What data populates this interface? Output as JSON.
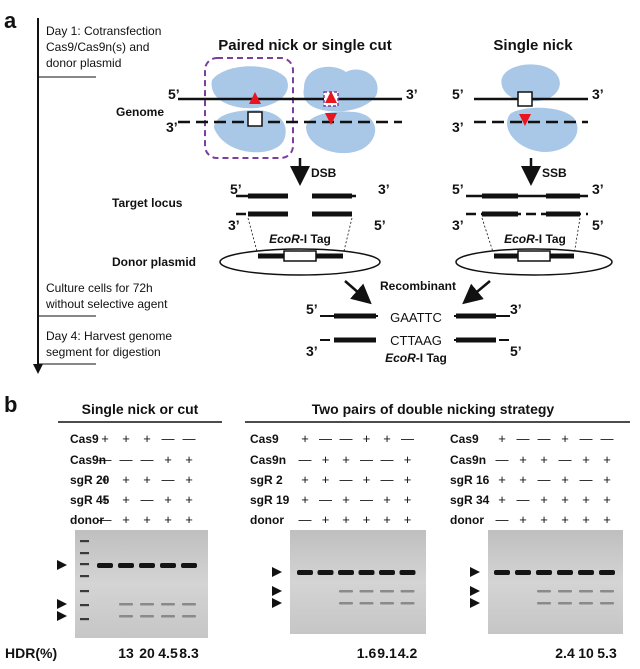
{
  "panel_a": {
    "label": "a",
    "timeline": {
      "day1": [
        "Day 1: Cotransfection",
        "Cas9/Cas9n(s) and",
        "donor plasmid"
      ],
      "culture": [
        "Culture cells for 72h",
        "without selective agent"
      ],
      "day4": [
        "Day 4: Harvest genome",
        "segment for digestion"
      ]
    },
    "title_paired": "Paired nick or single cut",
    "title_single": "Single nick",
    "genome_label": "Genome",
    "target_label": "Target locus",
    "donor_label": "Donor plasmid",
    "dsb": "DSB",
    "ssb": "SSB",
    "tag_italic": "EcoR",
    "tag_rest": "-I Tag",
    "recombinant": "Recombinant",
    "seq_top": "GAATTC",
    "seq_bottom": "CTTAAG",
    "prime5": "5’",
    "prime3": "3’"
  },
  "panel_b": {
    "label": "b",
    "title_left": "Single nick or cut",
    "title_right": "Two pairs of double nicking strategy",
    "gel1": {
      "rows": [
        {
          "label": "Cas9",
          "signs": [
            "+",
            "+",
            "+",
            "—",
            "—"
          ]
        },
        {
          "label": "Cas9n",
          "signs": [
            "—",
            "—",
            "—",
            "+",
            "+"
          ]
        },
        {
          "label": "sgR 20",
          "signs": [
            "+",
            "+",
            "+",
            "—",
            "+"
          ]
        },
        {
          "label": "sgR 45",
          "signs": [
            "+",
            "+",
            "—",
            "+",
            "+"
          ]
        },
        {
          "label": "donor",
          "signs": [
            "—",
            "+",
            "+",
            "+",
            "+"
          ]
        }
      ],
      "hdr": [
        "13",
        "20",
        "4.5",
        "8.3"
      ]
    },
    "gel2": {
      "rows": [
        {
          "label": "Cas9",
          "signs": [
            "+",
            "—",
            "—",
            "+",
            "+",
            "—"
          ]
        },
        {
          "label": "Cas9n",
          "signs": [
            "—",
            "+",
            "+",
            "—",
            "—",
            "+"
          ]
        },
        {
          "label": "sgR  2",
          "signs": [
            "+",
            "+",
            "—",
            "+",
            "—",
            "+"
          ]
        },
        {
          "label": "sgR 19",
          "signs": [
            "+",
            "—",
            "+",
            "—",
            "+",
            "+"
          ]
        },
        {
          "label": "donor",
          "signs": [
            "—",
            "+",
            "+",
            "+",
            "+",
            "+"
          ]
        }
      ],
      "hdr": [
        "1.6",
        "9.1",
        "4.2"
      ]
    },
    "gel3": {
      "rows": [
        {
          "label": "Cas9",
          "signs": [
            "+",
            "—",
            "—",
            "+",
            "—",
            "—"
          ]
        },
        {
          "label": "Cas9n",
          "signs": [
            "—",
            "+",
            "+",
            "—",
            "+",
            "+"
          ]
        },
        {
          "label": "sgR 16",
          "signs": [
            "+",
            "+",
            "—",
            "+",
            "—",
            "+"
          ]
        },
        {
          "label": "sgR 34",
          "signs": [
            "+",
            "—",
            "+",
            "+",
            "+",
            "+"
          ]
        },
        {
          "label": "donor",
          "signs": [
            "—",
            "+",
            "+",
            "+",
            "+",
            "+"
          ]
        }
      ],
      "hdr": [
        "2.4",
        "10",
        "5.3"
      ]
    },
    "hdr_label": "HDR(%)"
  },
  "colors": {
    "cas": "#a9c8e8",
    "cut": "#e8141e",
    "dashed_box": "#7b3fa0"
  }
}
